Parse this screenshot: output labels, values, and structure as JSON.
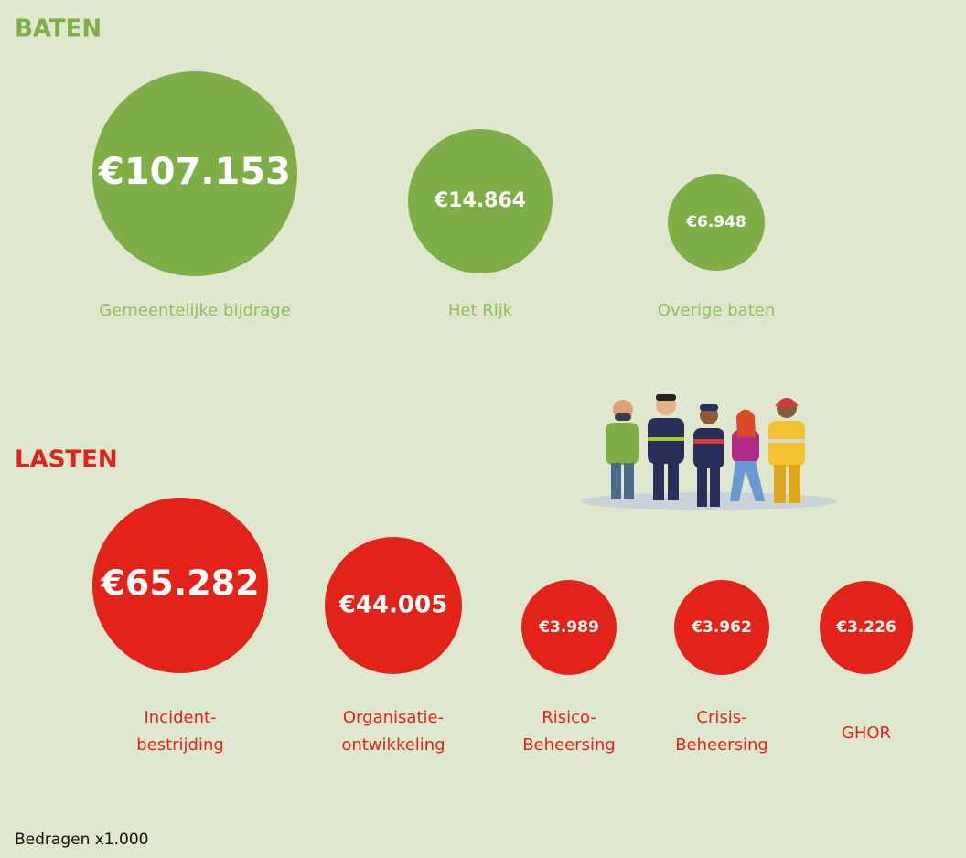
{
  "baten": {
    "title": "BATEN",
    "items": [
      {
        "amount": "€107.153",
        "label": [
          "Gemeentelijke bijdrage"
        ]
      },
      {
        "amount": "€14.864",
        "label": [
          "Het Rijk"
        ]
      },
      {
        "amount": "€6.948",
        "label": [
          "Overige baten"
        ]
      }
    ]
  },
  "lasten": {
    "title": "LASTEN",
    "items": [
      {
        "amount": "€65.282",
        "label": [
          "Incident-",
          "bestrijding"
        ]
      },
      {
        "amount": "€44.005",
        "label": [
          "Organisatie-",
          "ontwikkeling"
        ]
      },
      {
        "amount": "€3.989",
        "label": [
          "Risico-",
          "Beheersing"
        ]
      },
      {
        "amount": "€3.962",
        "label": [
          "Crisis-",
          "Beheersing"
        ]
      },
      {
        "amount": "€3.226",
        "label": [
          "GHOR"
        ]
      }
    ]
  },
  "footnote": "Bedragen x1.000"
}
